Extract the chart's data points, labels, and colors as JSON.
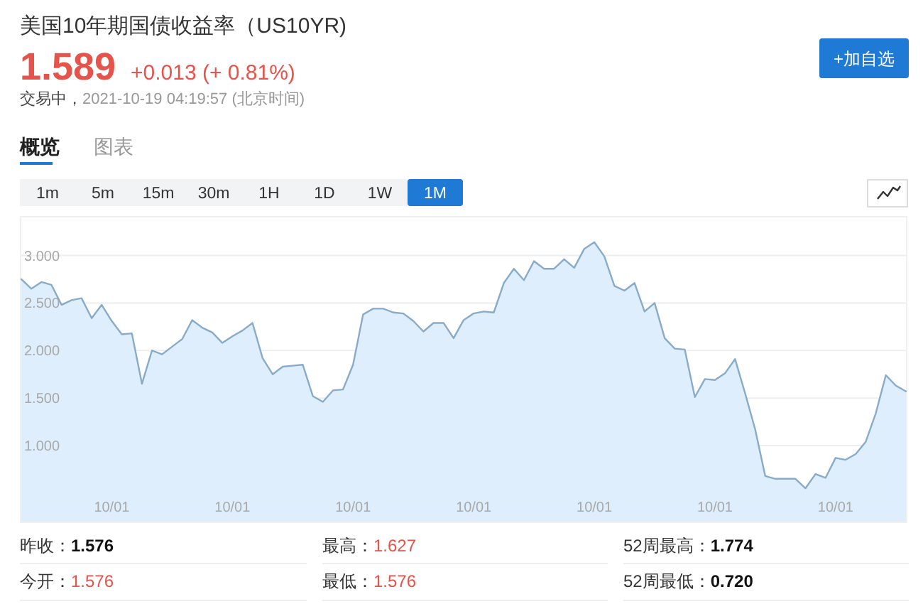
{
  "chart_data": {
    "type": "area",
    "title": "美国10年期国债收益率（US10YR)",
    "categories": [
      null,
      null,
      null,
      null,
      null,
      null,
      null,
      null,
      null,
      "10/01",
      null,
      null,
      null,
      null,
      null,
      null,
      null,
      null,
      null,
      null,
      null,
      "10/01",
      null,
      null,
      null,
      null,
      null,
      null,
      null,
      null,
      null,
      null,
      null,
      "10/01",
      null,
      null,
      null,
      null,
      null,
      null,
      null,
      null,
      null,
      null,
      null,
      "10/01",
      null,
      null,
      null,
      null,
      null,
      null,
      null,
      null,
      null,
      null,
      null,
      "10/01",
      null,
      null,
      null,
      null,
      null,
      null,
      null,
      null,
      null,
      null,
      null,
      "10/01",
      null,
      null,
      null,
      null,
      null,
      null,
      null,
      null,
      null,
      null,
      null,
      "10/01",
      null,
      null,
      null,
      null,
      null,
      null,
      null
    ],
    "series": [
      {
        "color": "#88abc9",
        "values": [
          2.75,
          2.65,
          2.72,
          2.69,
          2.48,
          2.53,
          2.55,
          2.34,
          2.48,
          2.31,
          2.17,
          2.18,
          1.65,
          2.0,
          1.96,
          2.04,
          2.12,
          2.32,
          2.24,
          2.19,
          2.08,
          2.15,
          2.21,
          2.29,
          1.92,
          1.75,
          1.83,
          1.84,
          1.85,
          1.52,
          1.46,
          1.58,
          1.59,
          1.85,
          2.38,
          2.44,
          2.44,
          2.4,
          2.39,
          2.31,
          2.2,
          2.29,
          2.29,
          2.13,
          2.32,
          2.39,
          2.41,
          2.4,
          2.71,
          2.86,
          2.74,
          2.94,
          2.86,
          2.86,
          2.96,
          2.87,
          3.07,
          3.14,
          2.99,
          2.68,
          2.63,
          2.71,
          2.41,
          2.5,
          2.13,
          2.02,
          2.01,
          1.51,
          1.7,
          1.69,
          1.76,
          1.91,
          1.55,
          1.17,
          0.68,
          0.65,
          0.65,
          0.65,
          0.55,
          0.7,
          0.66,
          0.87,
          0.85,
          0.91,
          1.04,
          1.34,
          1.74,
          1.63,
          1.57
        ]
      }
    ],
    "ylim": [
      0.2,
      3.4
    ],
    "yticks": [
      {
        "value": 1,
        "label": "1.000"
      },
      {
        "value": 1.5,
        "label": "1.500"
      },
      {
        "value": 2,
        "label": "2.000"
      },
      {
        "value": 2.5,
        "label": "2.500"
      },
      {
        "value": 3,
        "label": "3.000"
      }
    ],
    "grid": "y",
    "annotations": [
      "1.589",
      "+0.013 (+ 0.81%)",
      "交易中，2021-10-19 04:19:57 (北京时间)",
      "+加自选",
      "概览",
      "图表",
      "1m",
      "5m",
      "15m",
      "30m",
      "1H",
      "1D",
      "1W",
      "1M",
      "昨收：1.576",
      "最高：1.627",
      "52周最高：1.774",
      "今开：1.576",
      "最低：1.576",
      "52周最低：0.720"
    ]
  }
}
